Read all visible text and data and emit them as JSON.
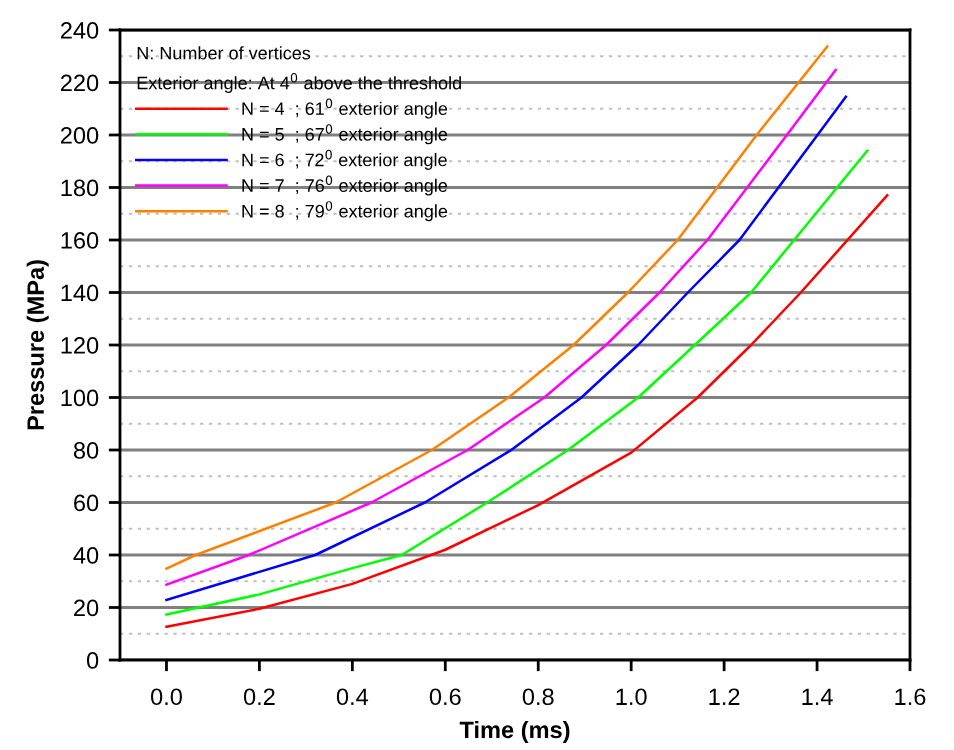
{
  "chart_data": {
    "type": "line",
    "xlabel": "Time (ms)",
    "ylabel": "Pressure (MPa)",
    "legend_title": "N: Number of vertices\nExterior angle: At 4$^{0}$ above the threshold",
    "xlim": [
      -0.1,
      1.6
    ],
    "xticks": [
      {
        "value": 0,
        "label": "0.0"
      },
      0.2,
      0.4,
      0.6,
      0.8,
      {
        "value": 1,
        "label": "1.0"
      },
      1.2,
      1.4,
      1.6
    ],
    "ylim": [
      0,
      240
    ],
    "yticks": [
      0,
      20,
      40,
      60,
      80,
      100,
      120,
      140,
      160,
      180,
      200,
      220,
      240
    ],
    "grid": "y",
    "legend": "top left",
    "marker": "none",
    "line_style": "solid",
    "series": [
      {
        "name": "N = 4  ; 61$^{0}$ exterior angle",
        "color": "#ff0000",
        "x": [
          0,
          0.2,
          0.4,
          0.6,
          0.8,
          1.0,
          1.143,
          1.258,
          1.365,
          1.551
        ],
        "values": [
          12.7,
          19.5,
          29,
          42,
          59,
          79,
          100,
          120,
          140,
          177
        ]
      },
      {
        "name": "N = 5  ; 67$^{0}$ exterior angle",
        "color": "#00ff00",
        "x": [
          0,
          0.2,
          0.4,
          0.506,
          0.69,
          0.864,
          1.015,
          1.137,
          1.258,
          1.508
        ],
        "values": [
          17.3,
          25,
          35,
          40,
          60,
          80,
          100,
          120,
          140,
          194
        ]
      },
      {
        "name": "N = 6  ; 72$^{0}$ exterior angle",
        "color": "#0000ff",
        "x": [
          0,
          0.32,
          0.556,
          0.742,
          0.893,
          1.015,
          1.122,
          1.233,
          1.401,
          1.462
        ],
        "values": [
          22.9,
          40,
          60,
          80,
          100,
          120,
          140,
          160,
          200,
          214.6
        ]
      },
      {
        "name": "N = 7  ; 76$^{0}$ exterior angle",
        "color": "#ff00ff",
        "x": [
          0,
          0.177,
          0.441,
          0.648,
          0.813,
          0.946,
          1.061,
          1.164,
          1.335,
          1.44
        ],
        "values": [
          28.7,
          40,
          60,
          80,
          100,
          120,
          140,
          160,
          200,
          224.8
        ]
      },
      {
        "name": "N = 8  ; 79$^{0}$ exterior angle",
        "color": "#ff8000",
        "x": [
          0,
          0.063,
          0.364,
          0.571,
          0.736,
          0.876,
          0.993,
          1.1,
          1.27,
          1.422
        ],
        "values": [
          34.8,
          40,
          60,
          80,
          100,
          120,
          140,
          160,
          200,
          233.7
        ]
      }
    ]
  }
}
